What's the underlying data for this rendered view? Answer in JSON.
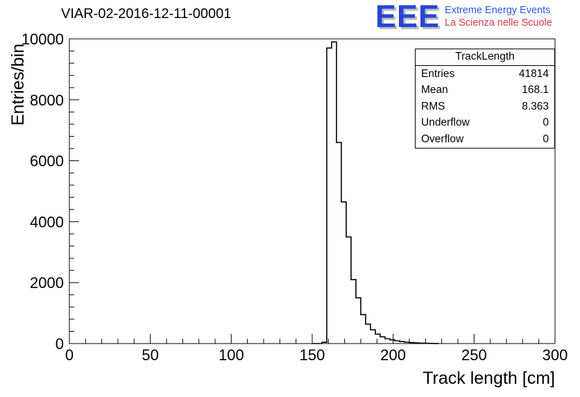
{
  "header": {
    "title": "VIAR-02-2016-12-11-00001",
    "logo": {
      "acronym": "EEE",
      "line1": "Extreme Energy Events",
      "line2": "La Scienza nelle Scuole",
      "acronym_color": "#2746d6",
      "shadow_color": "#bdbdbd",
      "line1_color": "#2b59e0",
      "line2_color": "#d63a48"
    }
  },
  "stats": {
    "title": "TrackLength",
    "rows": [
      {
        "label": "Entries",
        "value": "41814"
      },
      {
        "label": "Mean",
        "value": "168.1"
      },
      {
        "label": "RMS",
        "value": "8.363"
      },
      {
        "label": "Underflow",
        "value": "0"
      },
      {
        "label": "Overflow",
        "value": "0"
      }
    ]
  },
  "chart_data": {
    "type": "bar",
    "subtype": "step-histogram",
    "title": "VIAR-02-2016-12-11-00001",
    "xlabel": "Track length [cm]",
    "ylabel": "Entries/bin",
    "xlim": [
      0,
      300
    ],
    "ylim": [
      0,
      10000
    ],
    "x_major_ticks": [
      0,
      50,
      100,
      150,
      200,
      250,
      300
    ],
    "x_minor_step": 10,
    "y_major_ticks": [
      0,
      2000,
      4000,
      6000,
      8000,
      10000
    ],
    "y_minor_step": 400,
    "grid": false,
    "legend": false,
    "line_color": "#000000",
    "bin_edges": [
      150,
      153,
      156,
      159,
      162,
      165,
      168,
      171,
      174,
      177,
      180,
      183,
      186,
      189,
      192,
      195,
      198,
      201,
      204,
      207,
      210,
      213,
      216,
      219,
      222,
      225,
      228
    ],
    "counts": [
      0,
      0,
      40,
      9700,
      9900,
      6600,
      4650,
      3500,
      2100,
      1500,
      950,
      640,
      450,
      310,
      220,
      160,
      120,
      90,
      65,
      45,
      32,
      22,
      14,
      8,
      4,
      2
    ]
  }
}
